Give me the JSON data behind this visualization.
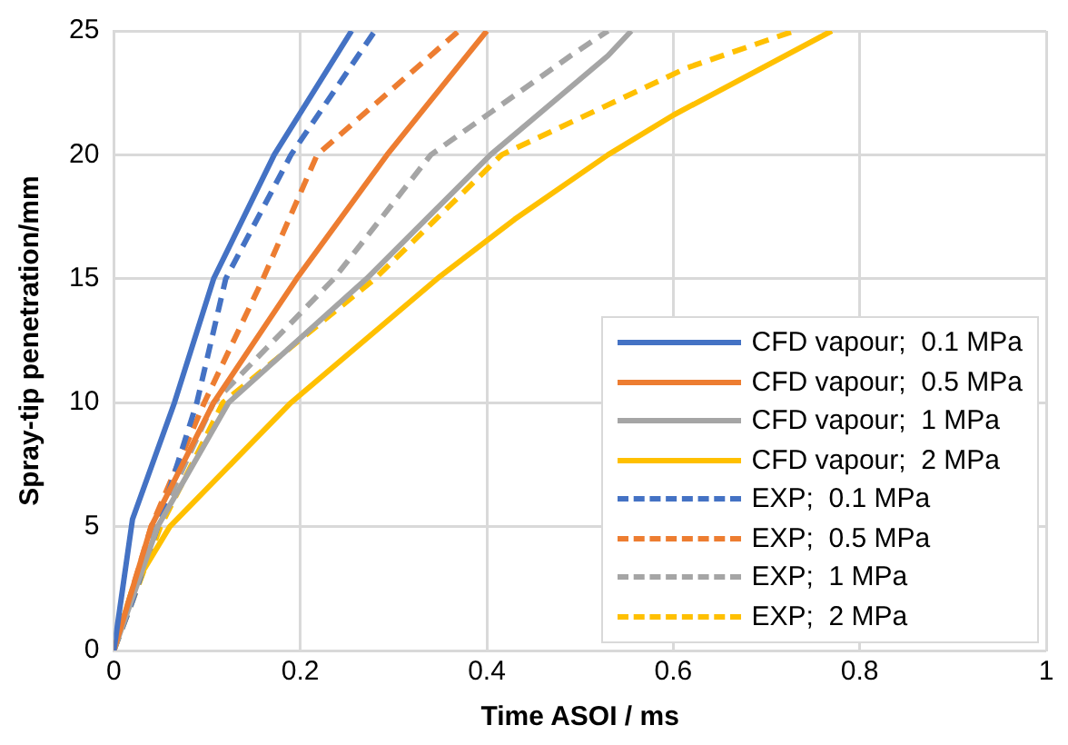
{
  "chart_data": {
    "type": "line",
    "xlabel": "Time ASOI / ms",
    "ylabel": "Spray-tip penetration/mm",
    "xlim": [
      0,
      1
    ],
    "xticks": [
      0,
      0.2,
      0.4,
      0.6,
      0.8,
      1
    ],
    "ylim": [
      0,
      25
    ],
    "yticks": [
      0,
      5,
      10,
      15,
      20,
      25
    ],
    "grid": true,
    "legend": "bottom right",
    "marker": "none",
    "series": [
      {
        "name": "CFD vapour;  0.1 MPa",
        "color": "#4472c4",
        "line_style": "solid",
        "x": [
          0,
          0.02,
          0.065,
          0.107,
          0.172,
          0.255
        ],
        "values": [
          0,
          5.3,
          10,
          15,
          20,
          25
        ]
      },
      {
        "name": "CFD vapour;  0.5 MPa",
        "color": "#ed7d31",
        "line_style": "solid",
        "x": [
          0,
          0.04,
          0.107,
          0.196,
          0.293,
          0.4
        ],
        "values": [
          0,
          5,
          10,
          15,
          20,
          25
        ]
      },
      {
        "name": "CFD vapour;  1 MPa",
        "color": "#a5a5a5",
        "line_style": "solid",
        "x": [
          0,
          0.047,
          0.123,
          0.271,
          0.404,
          0.53,
          0.555
        ],
        "values": [
          0,
          5,
          10,
          15,
          20,
          24,
          25
        ]
      },
      {
        "name": "CFD vapour;  2 MPa",
        "color": "#ffc000",
        "line_style": "solid",
        "x": [
          0,
          0.02,
          0.06,
          0.19,
          0.35,
          0.43,
          0.53,
          0.6,
          0.77
        ],
        "values": [
          0,
          2.5,
          5,
          10,
          15.1,
          17.4,
          20,
          21.6,
          25
        ]
      },
      {
        "name": "EXP;  0.1 MPa",
        "color": "#4472c4",
        "line_style": "dashed",
        "x": [
          0,
          0.02,
          0.047,
          0.089,
          0.12,
          0.19,
          0.28
        ],
        "values": [
          0,
          2,
          5,
          10,
          15,
          20,
          25
        ]
      },
      {
        "name": "EXP;  0.5 MPa",
        "color": "#ed7d31",
        "line_style": "dashed",
        "x": [
          0,
          0.04,
          0.097,
          0.16,
          0.218,
          0.37
        ],
        "values": [
          0,
          5,
          10,
          15,
          20,
          25
        ]
      },
      {
        "name": "EXP;  1 MPa",
        "color": "#a5a5a5",
        "line_style": "dashed",
        "x": [
          0,
          0.045,
          0.107,
          0.236,
          0.34,
          0.49,
          0.53
        ],
        "values": [
          0,
          5,
          10,
          15,
          20,
          24,
          25
        ]
      },
      {
        "name": "EXP;  2 MPa",
        "color": "#ffc000",
        "line_style": "dashed",
        "x": [
          0,
          0.05,
          0.117,
          0.28,
          0.416,
          0.614,
          0.73
        ],
        "values": [
          0,
          5,
          10,
          15,
          20,
          23.5,
          25
        ]
      }
    ]
  }
}
